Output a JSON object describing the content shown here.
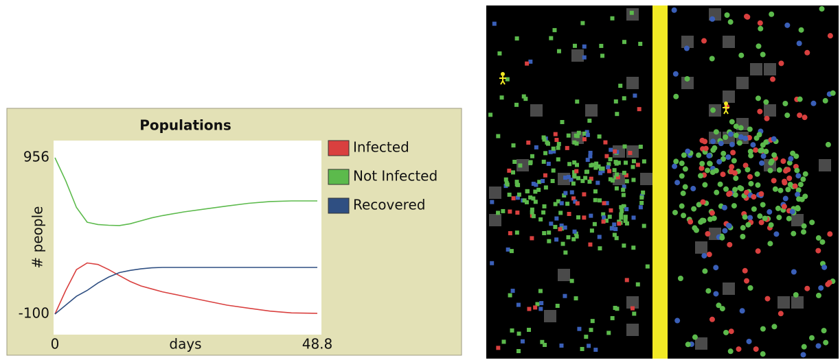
{
  "chart_data": {
    "type": "line",
    "title": "Populations",
    "x_label": "days",
    "y_label": "# people",
    "x": [
      0,
      2,
      4,
      6,
      8,
      10,
      12,
      14,
      16,
      18,
      20,
      24,
      28,
      32,
      36,
      40,
      44,
      48.8
    ],
    "series": [
      {
        "name": "Infected",
        "color": "#d9403f",
        "values": [
          -100,
          60,
          200,
          245,
          235,
          200,
          160,
          120,
          90,
          70,
          50,
          20,
          -10,
          -40,
          -60,
          -80,
          -92,
          -95
        ]
      },
      {
        "name": "Not Infected",
        "color": "#5cba4c",
        "values": [
          956,
          800,
          620,
          520,
          505,
          500,
          498,
          510,
          530,
          550,
          565,
          590,
          610,
          630,
          648,
          660,
          664,
          664
        ]
      },
      {
        "name": "Recovered",
        "color": "#2f4f82",
        "values": [
          -100,
          -40,
          20,
          60,
          110,
          150,
          180,
          195,
          205,
          212,
          215,
          215,
          215,
          215,
          215,
          215,
          215,
          215
        ]
      }
    ],
    "xlim": [
      0,
      48.8
    ],
    "xticks": [
      0,
      48.8
    ],
    "ylim": [
      -100,
      956
    ],
    "yticks": [
      956,
      -100
    ]
  }
}
